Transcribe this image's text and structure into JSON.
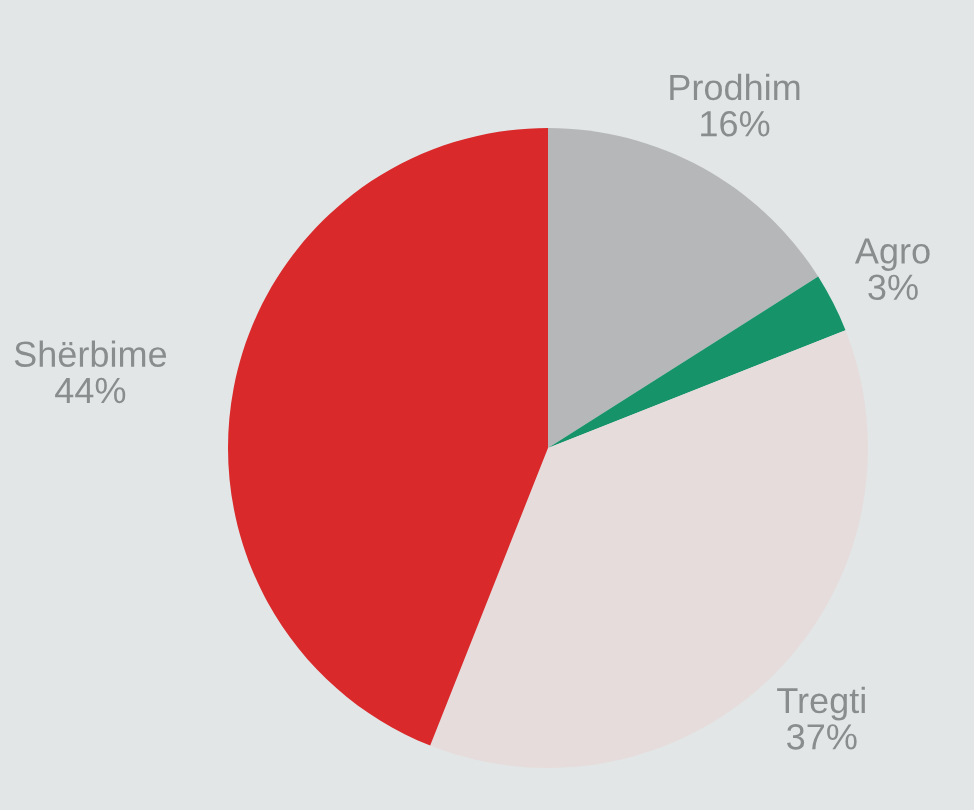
{
  "chart_data": {
    "type": "pie",
    "categories": [
      "Prodhim",
      "Agro",
      "Tregti",
      "Shërbime"
    ],
    "values": [
      16,
      3,
      37,
      44
    ],
    "value_labels": [
      "16%",
      "3%",
      "37%",
      "44%"
    ],
    "colors": [
      "#b6b7b8",
      "#17936a",
      "#e6dcdc",
      "#d9292b"
    ],
    "legend": false
  }
}
